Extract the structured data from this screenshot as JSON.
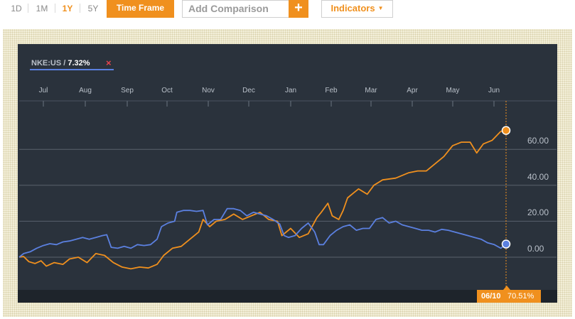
{
  "toolbar": {
    "ranges": [
      "1D",
      "1M",
      "1Y",
      "5Y"
    ],
    "active_range": "1Y",
    "time_frame_label": "Time Frame",
    "comparison_placeholder": "Add Comparison",
    "add_label": "+",
    "indicators_label": "Indicators"
  },
  "legend": {
    "ticker": "NKE:US /",
    "value": "7.32%",
    "remove_label": "×"
  },
  "readout": {
    "date": "06/10",
    "value": "70.51%"
  },
  "colors": {
    "accent": "#f0901e",
    "panel_bg": "#2a323c",
    "blue_series": "#5b80e0",
    "orange_series": "#f0901e"
  },
  "chart_data": {
    "type": "line",
    "x_tick_labels": [
      "Jul",
      "Aug",
      "Sep",
      "Oct",
      "Nov",
      "Dec",
      "Jan",
      "Feb",
      "Mar",
      "Apr",
      "May",
      "Jun"
    ],
    "y_tick_labels": [
      "0.00",
      "20.00",
      "40.00",
      "60.00"
    ],
    "ylim": [
      -10,
      80
    ],
    "grid": true,
    "series": [
      {
        "color": "#f0901e",
        "values": [
          [
            0.0,
            0.0
          ],
          [
            0.1,
            0.4
          ],
          [
            0.22,
            -2.5
          ],
          [
            0.36,
            -3.5
          ],
          [
            0.5,
            -2.0
          ],
          [
            0.62,
            -5.0
          ],
          [
            0.8,
            -3.0
          ],
          [
            1.0,
            -4.0
          ],
          [
            1.15,
            -1.0
          ],
          [
            1.35,
            0.0
          ],
          [
            1.55,
            -3.0
          ],
          [
            1.75,
            2.0
          ],
          [
            1.95,
            1.0
          ],
          [
            2.15,
            -3.0
          ],
          [
            2.35,
            -5.5
          ],
          [
            2.55,
            -6.5
          ],
          [
            2.75,
            -5.5
          ],
          [
            2.95,
            -6.0
          ],
          [
            3.15,
            -4.0
          ],
          [
            3.3,
            1.0
          ],
          [
            3.5,
            5.0
          ],
          [
            3.7,
            6.0
          ],
          [
            3.9,
            10.0
          ],
          [
            4.1,
            14.0
          ],
          [
            4.2,
            21.0
          ],
          [
            4.35,
            17.0
          ],
          [
            4.5,
            20.0
          ],
          [
            4.7,
            21.0
          ],
          [
            4.9,
            24.0
          ],
          [
            5.1,
            21.0
          ],
          [
            5.3,
            23.0
          ],
          [
            5.5,
            25.0
          ],
          [
            5.7,
            21.0
          ],
          [
            5.9,
            20.0
          ],
          [
            6.0,
            12.0
          ],
          [
            6.2,
            16.0
          ],
          [
            6.4,
            11.0
          ],
          [
            6.6,
            13.0
          ],
          [
            6.8,
            22.0
          ],
          [
            6.9,
            25.0
          ],
          [
            7.05,
            30.0
          ],
          [
            7.15,
            23.0
          ],
          [
            7.3,
            21.0
          ],
          [
            7.4,
            26.0
          ],
          [
            7.5,
            33.0
          ],
          [
            7.65,
            36.0
          ],
          [
            7.75,
            38.0
          ],
          [
            7.95,
            35.0
          ],
          [
            8.1,
            40.0
          ],
          [
            8.3,
            43.0
          ],
          [
            8.6,
            44.0
          ],
          [
            8.9,
            47.0
          ],
          [
            9.1,
            48.0
          ],
          [
            9.3,
            48.0
          ],
          [
            9.5,
            52.0
          ],
          [
            9.7,
            56.0
          ],
          [
            9.9,
            62.0
          ],
          [
            10.1,
            64.0
          ],
          [
            10.3,
            64.0
          ],
          [
            10.45,
            58.0
          ],
          [
            10.6,
            63.0
          ],
          [
            10.8,
            65.0
          ],
          [
            11.0,
            70.0
          ],
          [
            11.12,
            70.5
          ]
        ]
      },
      {
        "color": "#5b80e0",
        "values": [
          [
            0.0,
            0.0
          ],
          [
            0.1,
            2.0
          ],
          [
            0.25,
            3.0
          ],
          [
            0.4,
            5.0
          ],
          [
            0.55,
            6.5
          ],
          [
            0.7,
            7.5
          ],
          [
            0.85,
            7.0
          ],
          [
            1.0,
            8.5
          ],
          [
            1.15,
            9.0
          ],
          [
            1.3,
            10.0
          ],
          [
            1.45,
            11.0
          ],
          [
            1.6,
            10.0
          ],
          [
            1.75,
            11.0
          ],
          [
            1.9,
            12.0
          ],
          [
            2.0,
            12.5
          ],
          [
            2.1,
            5.5
          ],
          [
            2.25,
            5.0
          ],
          [
            2.4,
            6.0
          ],
          [
            2.55,
            5.0
          ],
          [
            2.7,
            7.0
          ],
          [
            2.85,
            6.5
          ],
          [
            3.0,
            7.0
          ],
          [
            3.15,
            10.0
          ],
          [
            3.25,
            17.0
          ],
          [
            3.4,
            19.0
          ],
          [
            3.55,
            20.0
          ],
          [
            3.6,
            25.0
          ],
          [
            3.75,
            26.0
          ],
          [
            3.9,
            26.0
          ],
          [
            4.05,
            25.5
          ],
          [
            4.2,
            26.0
          ],
          [
            4.3,
            18.0
          ],
          [
            4.45,
            21.0
          ],
          [
            4.6,
            21.0
          ],
          [
            4.75,
            27.0
          ],
          [
            4.9,
            27.0
          ],
          [
            5.05,
            26.0
          ],
          [
            5.2,
            23.0
          ],
          [
            5.35,
            25.0
          ],
          [
            5.5,
            24.0
          ],
          [
            5.65,
            23.0
          ],
          [
            5.8,
            21.0
          ],
          [
            5.95,
            18.5
          ],
          [
            6.05,
            12.0
          ],
          [
            6.15,
            11.0
          ],
          [
            6.3,
            12.0
          ],
          [
            6.45,
            16.0
          ],
          [
            6.6,
            19.0
          ],
          [
            6.75,
            14.0
          ],
          [
            6.85,
            7.0
          ],
          [
            6.95,
            7.0
          ],
          [
            7.1,
            12.0
          ],
          [
            7.25,
            15.0
          ],
          [
            7.4,
            17.0
          ],
          [
            7.55,
            18.0
          ],
          [
            7.7,
            15.0
          ],
          [
            7.85,
            16.0
          ],
          [
            8.0,
            16.0
          ],
          [
            8.15,
            21.0
          ],
          [
            8.3,
            22.0
          ],
          [
            8.45,
            19.0
          ],
          [
            8.6,
            20.0
          ],
          [
            8.75,
            18.0
          ],
          [
            8.9,
            17.0
          ],
          [
            9.05,
            16.0
          ],
          [
            9.2,
            15.0
          ],
          [
            9.35,
            15.0
          ],
          [
            9.5,
            14.0
          ],
          [
            9.65,
            15.5
          ],
          [
            9.8,
            15.0
          ],
          [
            9.95,
            14.0
          ],
          [
            10.1,
            13.0
          ],
          [
            10.25,
            12.0
          ],
          [
            10.4,
            11.0
          ],
          [
            10.55,
            10.0
          ],
          [
            10.7,
            8.0
          ],
          [
            10.85,
            7.0
          ],
          [
            11.0,
            5.0
          ],
          [
            11.12,
            7.3
          ]
        ]
      }
    ]
  }
}
